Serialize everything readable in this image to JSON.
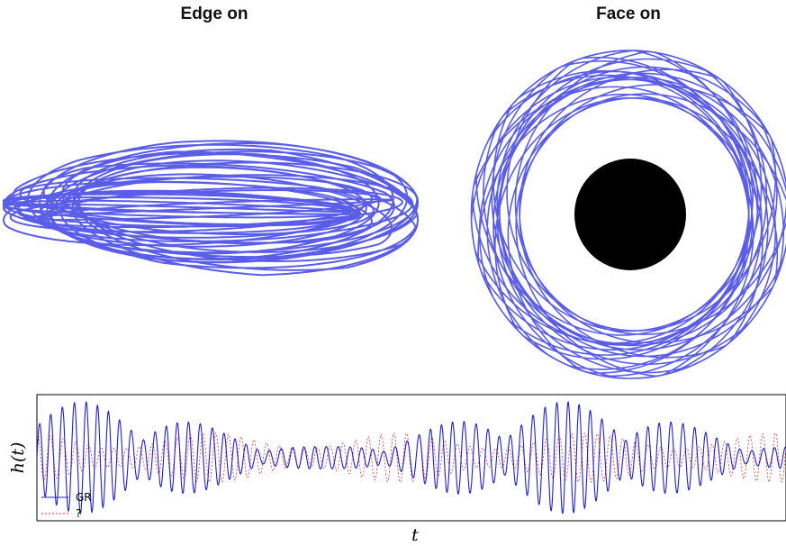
{
  "chart_data": [
    {
      "type": "line",
      "title": "Edge on",
      "description_series": [
        {
          "name": "",
          "color": "#5a5de8"
        }
      ]
    },
    {
      "type": "line",
      "title": "Face on",
      "series": [
        {
          "name": "",
          "color": "#5a5de8"
        }
      ],
      "central_disk_color": "#000000"
    },
    {
      "type": "line",
      "title": "",
      "xlabel": "t",
      "ylabel": "h(t)",
      "grid": false,
      "legend": "bottom-left",
      "series": [
        {
          "name": "GR",
          "color": "#1f1fd6",
          "style": "solid"
        },
        {
          "name": "?",
          "color": "#e83030",
          "style": "dotted"
        }
      ]
    }
  ]
}
